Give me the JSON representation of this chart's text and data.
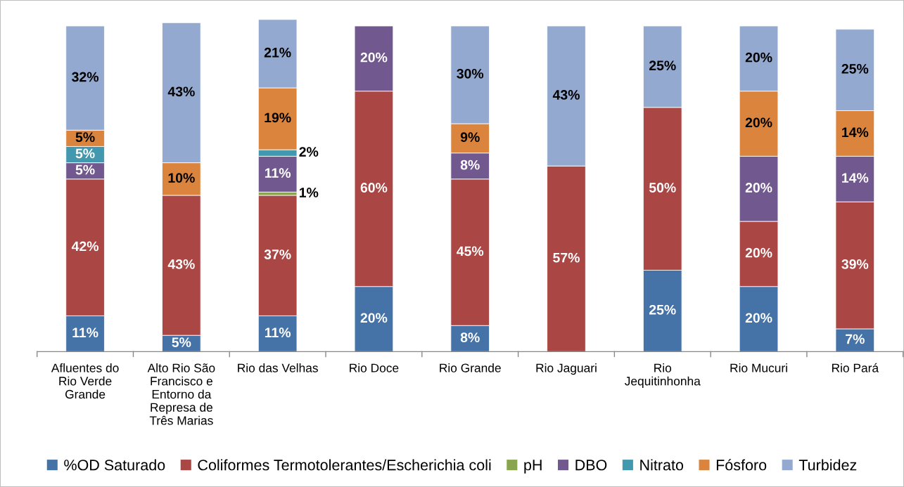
{
  "chart_data": {
    "type": "bar",
    "stacked": true,
    "legend": "bottom",
    "grid": false,
    "tick_labels": "x",
    "categories": [
      "Afluentes do Rio Verde Grande",
      "Alto Rio São Francisco e Entorno da Represa de Três Marias",
      "Rio das Velhas",
      "Rio Doce",
      "Rio Grande",
      "Rio Jaguari",
      "Rio Jequitinhonha",
      "Rio Mucuri",
      "Rio Pará"
    ],
    "series": [
      {
        "name": "%OD Saturado",
        "color": "#4572a7",
        "values": [
          11,
          5,
          11,
          20,
          8,
          null,
          25,
          20,
          7
        ],
        "value_labels": [
          "11%",
          "5%",
          "11%",
          "20%",
          "8%",
          null,
          "25%",
          "20%",
          "7%"
        ]
      },
      {
        "name": "Coliformes Termotolerantes/Escherichia coli",
        "color": "#aa4643",
        "values": [
          42,
          43,
          37,
          60,
          45,
          57,
          50,
          20,
          39
        ],
        "value_labels": [
          "42%",
          "43%",
          "37%",
          "60%",
          "45%",
          "57%",
          "50%",
          "20%",
          "39%"
        ]
      },
      {
        "name": "pH",
        "color": "#89a54e",
        "values": [
          null,
          null,
          1,
          null,
          null,
          null,
          null,
          null,
          null
        ],
        "value_labels": [
          null,
          null,
          "1%",
          null,
          null,
          null,
          null,
          null,
          null
        ]
      },
      {
        "name": "DBO",
        "color": "#71588f",
        "values": [
          5,
          null,
          11,
          20,
          8,
          null,
          null,
          20,
          14
        ],
        "value_labels": [
          "5%",
          null,
          "11%",
          "20%",
          "8%",
          null,
          null,
          "20%",
          "14%"
        ]
      },
      {
        "name": "Nitrato",
        "color": "#4198af",
        "values": [
          5,
          null,
          2,
          null,
          null,
          null,
          null,
          null,
          null
        ],
        "value_labels": [
          "5%",
          null,
          "2%",
          null,
          null,
          null,
          null,
          null,
          null
        ]
      },
      {
        "name": "Fósforo",
        "color": "#db843d",
        "values": [
          5,
          10,
          19,
          null,
          9,
          null,
          null,
          20,
          14
        ],
        "value_labels": [
          "5%",
          "10%",
          "19%",
          null,
          "9%",
          null,
          null,
          "20%",
          "14%"
        ]
      },
      {
        "name": "Turbidez",
        "color": "#93a9cf",
        "values": [
          32,
          43,
          21,
          null,
          30,
          43,
          25,
          20,
          25
        ],
        "value_labels": [
          "32%",
          "43%",
          "21%",
          null,
          "30%",
          "43%",
          "25%",
          "20%",
          "25%"
        ]
      }
    ]
  }
}
